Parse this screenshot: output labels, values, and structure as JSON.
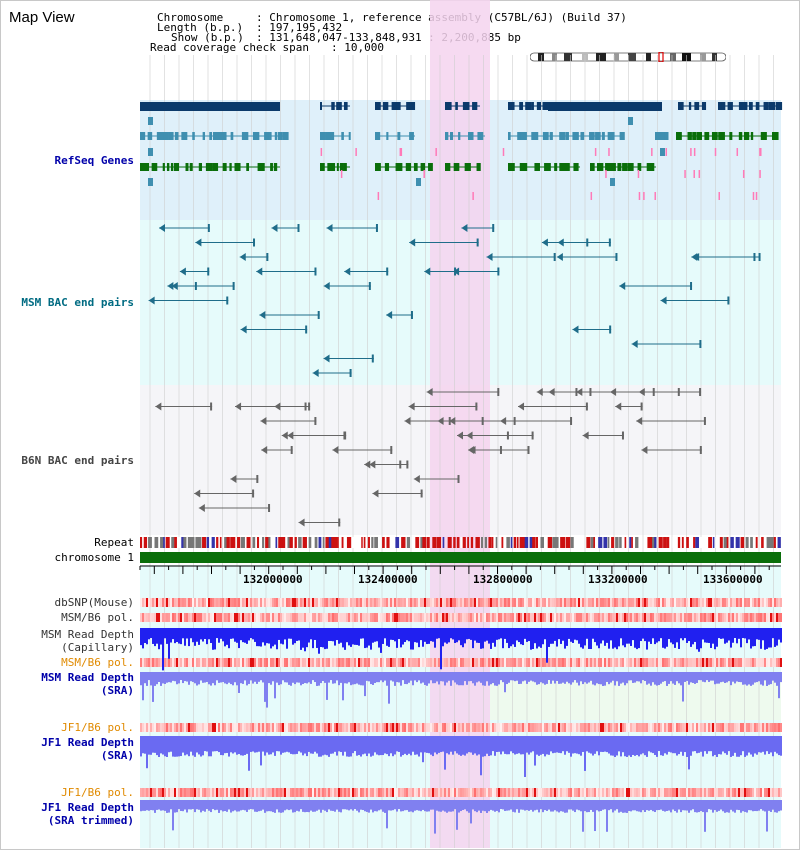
{
  "app": {
    "title": "Map View"
  },
  "header": {
    "chromosome_label": "Chromosome",
    "chromosome_value": ": Chromosome 1, reference assembly (C57BL/6J) (Build 37)",
    "length_label": "Length (b.p.)",
    "length_value": ": 197,195,432",
    "show_label": "Show (b.p.)",
    "show_value": ": 131,648,047-133,848,931 : 2,200,885 bp",
    "coverage_label": "Read coverage check span",
    "coverage_value": ": 10,000"
  },
  "tracks": {
    "refseq": "RefSeq Genes",
    "msm_bac": "MSM BAC end pairs",
    "b6n_bac": "B6N BAC end pairs",
    "repeat": "Repeat",
    "chromosome": "chromosome 1",
    "dbsnp": "dbSNP(Mouse)",
    "msm_b6_pol_1": "MSM/B6 pol.",
    "msm_read_depth_cap_1": "MSM Read Depth",
    "msm_read_depth_cap_2": "(Capillary)",
    "msm_b6_pol_2": "MSM/B6 pol.",
    "msm_read_depth_sra_1": "MSM Read Depth",
    "msm_read_depth_sra_2": "(SRA)",
    "jf1_b6_pol_1": "JF1/B6 pol.",
    "jf1_read_depth_sra_1": "JF1 Read Depth",
    "jf1_read_depth_sra_2": "(SRA)",
    "jf1_b6_pol_2": "JF1/B6 pol.",
    "jf1_read_depth_trim_1": "JF1 Read Depth",
    "jf1_read_depth_trim_2": "(SRA trimmed)"
  },
  "axis": {
    "ticks": [
      "132000000",
      "132400000",
      "132800000",
      "133200000",
      "133600000"
    ]
  },
  "colors": {
    "refseq_bg": "#dff0fa",
    "bac_bg": "#e6fbfb",
    "highlight": "#f5d3ee",
    "refseq_navy": "#0b3a6b",
    "refseq_teal": "#3f8fb0",
    "refseq_green": "#0a6e0a",
    "msm_bac": "#1f6d8a",
    "b6n_bac": "#666666",
    "chromosome_bar": "#0a6e0a",
    "read_depth": "#2020f0",
    "read_depth_light": "#8080f0",
    "pol_red": "#e83030"
  }
}
